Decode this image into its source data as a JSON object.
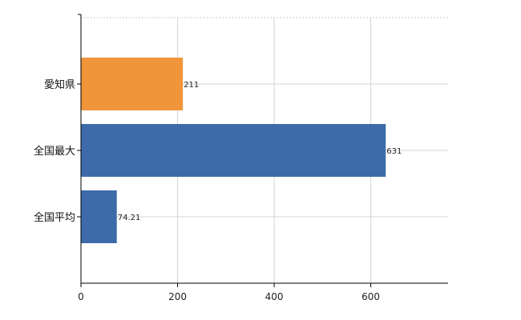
{
  "chart_data": {
    "type": "bar",
    "orientation": "horizontal",
    "categories": [
      "愛知県",
      "全国最大",
      "全国平均"
    ],
    "values": [
      211,
      631,
      74.21
    ],
    "value_labels": [
      "211",
      "631",
      "74.21"
    ],
    "colors": [
      "#f0953a",
      "#3d6baa",
      "#3d6baa"
    ],
    "xlim": [
      0,
      760
    ],
    "xticks": [
      0,
      200,
      400,
      600
    ],
    "grid": true,
    "title": "",
    "xlabel": "",
    "ylabel": ""
  }
}
